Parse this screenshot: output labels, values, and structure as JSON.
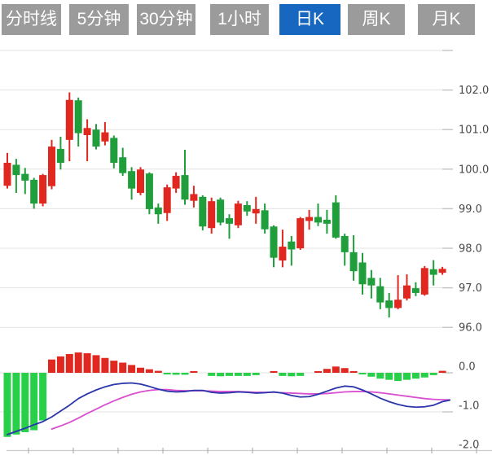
{
  "toolbar": {
    "tabs": [
      {
        "label": "分时线",
        "active": false
      },
      {
        "label": "5分钟",
        "active": false
      },
      {
        "label": "30分钟",
        "active": false
      },
      {
        "label": "1小时",
        "active": false
      },
      {
        "label": "日K",
        "active": true
      },
      {
        "label": "周K",
        "active": false
      },
      {
        "label": "月K",
        "active": false
      }
    ]
  },
  "colors": {
    "tab_inactive_bg": "#9b9b9b",
    "tab_active_bg": "#1767c0",
    "tab_text": "#ffffff",
    "candle_up_red": "#e02820",
    "candle_down_green": "#1f9e3b",
    "hist_up_red": "#e02820",
    "hist_down_green": "#28cf48",
    "dif_line_blue": "#2a35aa",
    "dea_line_magenta": "#d84fd0",
    "gridline": "#e3e3e3",
    "grid_tick": "#c4c4c4",
    "axis_line": "#cccccc",
    "axis_tick": "#b0b0b0",
    "axis_label_text": "#4a4a4a"
  },
  "chart_data": {
    "type": "candlestick",
    "title": "",
    "legend_position": "none",
    "grid": "horizontal",
    "price_axis": {
      "side": "right",
      "tick_labels": [
        "102.0",
        "101.0",
        "100.0",
        "99.0",
        "98.0",
        "97.0",
        "96.0"
      ],
      "tick_values": [
        102.0,
        101.0,
        100.0,
        99.0,
        98.0,
        97.0,
        96.0
      ],
      "unlabeled_top_gridline_value": 103.0,
      "ylim": [
        95.2,
        103.0
      ]
    },
    "candles_ohlc_note": "each candle = [open, high, low, close]; red=up, green=down",
    "candles": [
      [
        99.58,
        100.41,
        99.51,
        100.16
      ],
      [
        100.11,
        100.26,
        99.4,
        99.85
      ],
      [
        99.88,
        100.03,
        99.37,
        99.71
      ],
      [
        99.73,
        99.78,
        99.0,
        99.13
      ],
      [
        99.13,
        99.88,
        99.06,
        99.85
      ],
      [
        99.57,
        100.74,
        99.49,
        100.57
      ],
      [
        100.51,
        100.82,
        99.99,
        100.16
      ],
      [
        100.74,
        101.94,
        100.2,
        101.75
      ],
      [
        101.74,
        101.81,
        100.57,
        100.91
      ],
      [
        100.86,
        101.26,
        100.2,
        101.04
      ],
      [
        101.0,
        101.14,
        100.5,
        100.57
      ],
      [
        100.7,
        101.19,
        100.6,
        100.93
      ],
      [
        100.79,
        100.85,
        100.02,
        100.16
      ],
      [
        100.3,
        100.54,
        99.83,
        99.9
      ],
      [
        99.95,
        100.05,
        99.23,
        99.51
      ],
      [
        99.4,
        100.05,
        99.34,
        99.99
      ],
      [
        99.89,
        99.92,
        98.86,
        98.99
      ],
      [
        99.03,
        99.13,
        98.62,
        98.86
      ],
      [
        98.89,
        99.61,
        98.69,
        99.54
      ],
      [
        99.51,
        99.92,
        99.4,
        99.83
      ],
      [
        99.85,
        100.49,
        99.1,
        99.23
      ],
      [
        99.2,
        99.58,
        99.03,
        99.37
      ],
      [
        99.3,
        99.34,
        98.45,
        98.55
      ],
      [
        98.51,
        99.28,
        98.37,
        99.19
      ],
      [
        99.23,
        99.28,
        98.58,
        98.65
      ],
      [
        98.76,
        98.86,
        98.24,
        98.62
      ],
      [
        98.58,
        99.2,
        98.51,
        99.13
      ],
      [
        99.09,
        99.19,
        98.82,
        98.93
      ],
      [
        98.88,
        99.3,
        98.62,
        98.99
      ],
      [
        98.96,
        99.13,
        98.37,
        98.48
      ],
      [
        98.55,
        98.58,
        97.52,
        97.76
      ],
      [
        97.69,
        98.47,
        97.52,
        98.04
      ],
      [
        98.17,
        98.31,
        97.56,
        97.97
      ],
      [
        98.0,
        98.79,
        97.96,
        98.76
      ],
      [
        98.69,
        98.97,
        98.47,
        98.79
      ],
      [
        98.79,
        99.13,
        98.56,
        98.65
      ],
      [
        98.72,
        98.97,
        98.37,
        98.62
      ],
      [
        99.16,
        99.34,
        98.24,
        98.27
      ],
      [
        98.31,
        98.37,
        97.56,
        97.9
      ],
      [
        97.9,
        98.33,
        97.18,
        97.42
      ],
      [
        97.64,
        97.88,
        96.83,
        97.09
      ],
      [
        97.25,
        97.45,
        96.73,
        97.06
      ],
      [
        97.04,
        97.25,
        96.46,
        96.63
      ],
      [
        96.68,
        96.87,
        96.25,
        96.49
      ],
      [
        96.49,
        97.32,
        96.46,
        96.7
      ],
      [
        96.73,
        97.34,
        96.68,
        97.06
      ],
      [
        96.99,
        97.14,
        96.79,
        96.87
      ],
      [
        96.83,
        97.55,
        96.8,
        97.5
      ],
      [
        97.47,
        97.7,
        97.06,
        97.33
      ],
      [
        97.38,
        97.53,
        97.33,
        97.48
      ]
    ],
    "macd": {
      "axis_tick_labels": [
        "0.0",
        "-1.0",
        "-2.0"
      ],
      "axis_tick_values": [
        0.0,
        -1.0,
        -2.0
      ],
      "ylim": [
        -2.0,
        0.6
      ],
      "histogram": [
        -1.64,
        -1.58,
        -1.52,
        -1.47,
        -1.22,
        0.34,
        0.42,
        0.48,
        0.52,
        0.5,
        0.45,
        0.38,
        0.31,
        0.26,
        0.2,
        0.13,
        0.09,
        0.05,
        -0.02,
        -0.05,
        -0.05,
        0.03,
        0,
        -0.08,
        -0.09,
        -0.08,
        -0.08,
        -0.08,
        -0.06,
        0,
        0.03,
        -0.08,
        -0.09,
        -0.08,
        0,
        0.04,
        0.1,
        0.16,
        0.12,
        0.04,
        -0.03,
        -0.1,
        -0.15,
        -0.18,
        -0.21,
        -0.18,
        -0.15,
        -0.12,
        -0.06,
        0.05
      ],
      "dif": [
        -1.58,
        -1.5,
        -1.42,
        -1.33,
        -1.25,
        -1.13,
        -0.98,
        -0.83,
        -0.66,
        -0.54,
        -0.44,
        -0.36,
        -0.3,
        -0.27,
        -0.26,
        -0.29,
        -0.35,
        -0.42,
        -0.47,
        -0.49,
        -0.48,
        -0.45,
        -0.45,
        -0.5,
        -0.52,
        -0.51,
        -0.49,
        -0.5,
        -0.52,
        -0.51,
        -0.49,
        -0.52,
        -0.58,
        -0.62,
        -0.61,
        -0.55,
        -0.47,
        -0.39,
        -0.34,
        -0.36,
        -0.44,
        -0.54,
        -0.65,
        -0.74,
        -0.81,
        -0.86,
        -0.88,
        -0.87,
        -0.83,
        -0.74
      ],
      "dea_start_index": 5,
      "dea": [
        -1.44,
        -1.36,
        -1.27,
        -1.16,
        -1.04,
        -0.93,
        -0.82,
        -0.72,
        -0.63,
        -0.55,
        -0.49,
        -0.45,
        -0.43,
        -0.43,
        -0.45,
        -0.46,
        -0.46,
        -0.46,
        -0.47,
        -0.48,
        -0.48,
        -0.48,
        -0.49,
        -0.5,
        -0.5,
        -0.5,
        -0.51,
        -0.52,
        -0.53,
        -0.54,
        -0.54,
        -0.53,
        -0.51,
        -0.49,
        -0.48,
        -0.48,
        -0.49,
        -0.51,
        -0.54,
        -0.57,
        -0.6,
        -0.63,
        -0.66,
        -0.68,
        -0.69
      ],
      "dif_tail": -0.7,
      "dea_tail": -0.69
    }
  }
}
